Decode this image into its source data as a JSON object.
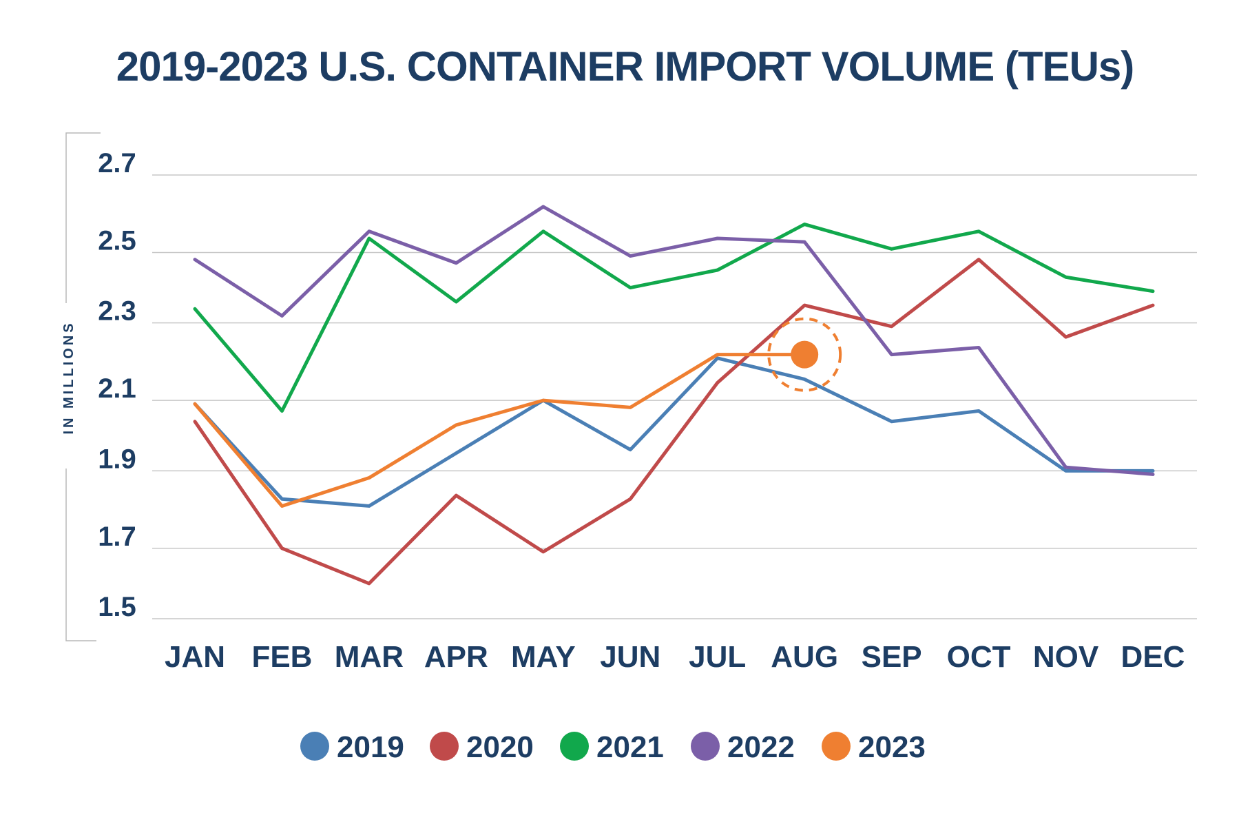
{
  "chart_data": {
    "type": "line",
    "title": "2019-2023 U.S. CONTAINER IMPORT VOLUME (TEUs)",
    "ylabel": "IN MILLIONS",
    "xlabel": "",
    "categories": [
      "JAN",
      "FEB",
      "MAR",
      "APR",
      "MAY",
      "JUN",
      "JUL",
      "AUG",
      "SEP",
      "OCT",
      "NOV",
      "DEC"
    ],
    "yticks": [
      "2.7",
      "2.5",
      "2.3",
      "2.1",
      "1.9",
      "1.7",
      "1.5"
    ],
    "ytick_values": [
      2.72,
      2.5,
      2.3,
      2.08,
      1.88,
      1.66,
      1.46
    ],
    "ylim": [
      1.46,
      2.72
    ],
    "grid": true,
    "legend_position": "bottom",
    "series": [
      {
        "name": "2019",
        "color": "#4a7fb5",
        "values": [
          2.07,
          1.8,
          1.78,
          1.93,
          2.08,
          1.94,
          2.2,
          2.14,
          2.02,
          2.05,
          1.88,
          1.88
        ]
      },
      {
        "name": "2020",
        "color": "#c04a4a",
        "values": [
          2.02,
          1.66,
          1.56,
          1.81,
          1.65,
          1.8,
          2.13,
          2.35,
          2.29,
          2.48,
          2.26,
          2.35
        ]
      },
      {
        "name": "2021",
        "color": "#11a84c",
        "values": [
          2.34,
          2.05,
          2.54,
          2.36,
          2.56,
          2.4,
          2.45,
          2.58,
          2.51,
          2.56,
          2.43,
          2.39
        ]
      },
      {
        "name": "2022",
        "color": "#7b5fa8",
        "values": [
          2.48,
          2.32,
          2.56,
          2.47,
          2.63,
          2.49,
          2.54,
          2.53,
          2.21,
          2.23,
          1.89,
          1.87
        ]
      },
      {
        "name": "2023",
        "color": "#ef7f31",
        "values": [
          2.07,
          1.78,
          1.86,
          2.01,
          2.08,
          2.06,
          2.21,
          2.21,
          null,
          null,
          null,
          null
        ]
      }
    ],
    "highlight": {
      "series": "2023",
      "category": "AUG",
      "value": 2.21
    }
  }
}
